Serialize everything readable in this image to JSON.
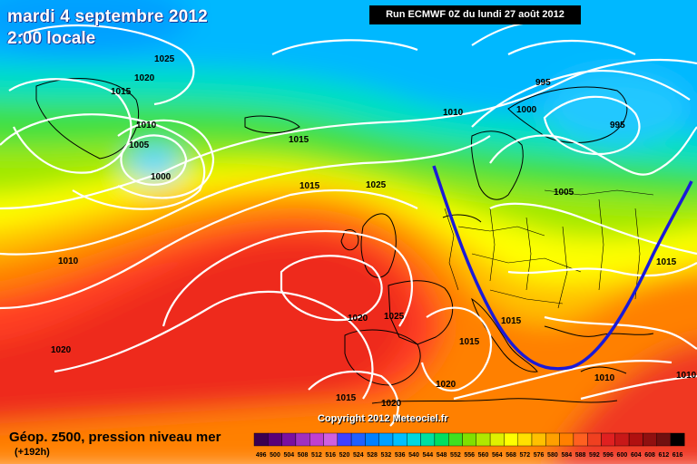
{
  "header": {
    "date_title": "mardi 4 septembre 2012",
    "time_title": "2:00 locale",
    "run_info": "Run ECMWF 0Z du lundi 27 août 2012"
  },
  "footer": {
    "copyright": "Copyright 2012 Meteociel.fr",
    "legend_title": "Géop. z500, pression niveau mer",
    "forecast_offset": "(+192h)"
  },
  "isobar_labels": [
    {
      "id": "iso-1025-nw",
      "text": "1025"
    },
    {
      "id": "iso-1020-nw",
      "text": "1020"
    },
    {
      "id": "iso-1015-nw",
      "text": "1015"
    },
    {
      "id": "iso-1010-greenland",
      "text": "1010"
    },
    {
      "id": "iso-1005-greenland",
      "text": "1005"
    },
    {
      "id": "iso-1000-greenland",
      "text": "1000"
    },
    {
      "id": "iso-1015-atlantic",
      "text": "1015"
    },
    {
      "id": "iso-1015-midatl",
      "text": "1015"
    },
    {
      "id": "iso-1025-uk",
      "text": "1025"
    },
    {
      "id": "iso-1010-west",
      "text": "1010"
    },
    {
      "id": "iso-1020-sw",
      "text": "1020"
    },
    {
      "id": "iso-1020-biscay",
      "text": "1020"
    },
    {
      "id": "iso-1025-france",
      "text": "1025"
    },
    {
      "id": "iso-1015-iberia",
      "text": "1015"
    },
    {
      "id": "iso-1020-iberia",
      "text": "1020"
    },
    {
      "id": "iso-1015-west-med",
      "text": "1015"
    },
    {
      "id": "iso-1020-sw-med",
      "text": "1020"
    },
    {
      "id": "iso-1015-italy",
      "text": "1015"
    },
    {
      "id": "iso-1010-north-sea",
      "text": "1010"
    },
    {
      "id": "iso-1000-scand",
      "text": "1000"
    },
    {
      "id": "iso-995-norway",
      "text": "995"
    },
    {
      "id": "iso-995-finland",
      "text": "995"
    },
    {
      "id": "iso-1005-baltic",
      "text": "1005"
    },
    {
      "id": "iso-1015-east",
      "text": "1015"
    },
    {
      "id": "iso-1010-greece",
      "text": "1010"
    },
    {
      "id": "iso-1010-turkey",
      "text": "1010"
    }
  ],
  "scale": {
    "values": [
      "496",
      "500",
      "504",
      "508",
      "512",
      "516",
      "520",
      "524",
      "528",
      "532",
      "536",
      "540",
      "544",
      "548",
      "552",
      "556",
      "560",
      "564",
      "568",
      "572",
      "576",
      "580",
      "584",
      "588",
      "592",
      "596",
      "600",
      "604",
      "608",
      "612",
      "616"
    ],
    "colors": [
      "#3c0050",
      "#5a0078",
      "#7a10a0",
      "#a030c0",
      "#c040d0",
      "#d060e0",
      "#4040ff",
      "#2060ff",
      "#0080ff",
      "#00a0ff",
      "#00c0ff",
      "#00d8e0",
      "#00e0a0",
      "#00e060",
      "#40e020",
      "#80e000",
      "#b0e800",
      "#e0f000",
      "#ffff00",
      "#ffe000",
      "#ffc000",
      "#ffa000",
      "#ff8000",
      "#ff6020",
      "#f04020",
      "#e02020",
      "#c81818",
      "#b01010",
      "#901010",
      "#701010",
      "#000000"
    ]
  },
  "colors": {
    "trough_line": "#1a1ad8",
    "isobar": "#ffffff",
    "coastline": "#000000"
  }
}
